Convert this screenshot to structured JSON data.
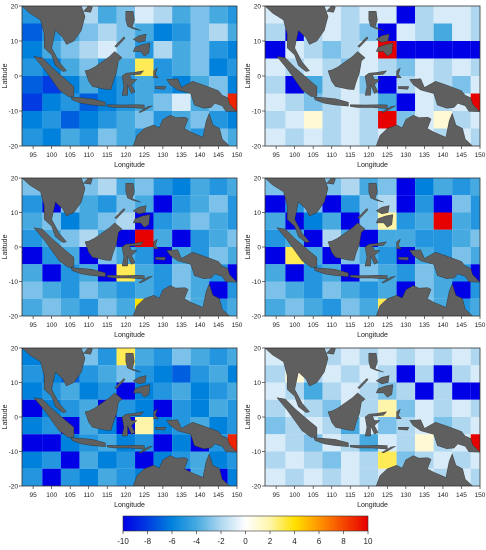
{
  "axes": {
    "xlabel": "Longitude",
    "ylabel": "Latitude",
    "x_ticks": [
      "95",
      "100",
      "105",
      "110",
      "115",
      "120",
      "125",
      "130",
      "135",
      "140",
      "145",
      "150"
    ],
    "y_ticks": [
      "20",
      "10",
      "0",
      "-10",
      "-20"
    ]
  },
  "extent": {
    "lon": [
      92,
      150
    ],
    "lat": [
      -20,
      20
    ],
    "cell_deg": 5
  },
  "colorbar": {
    "ticks": [
      "-10",
      "-8",
      "-6",
      "-4",
      "-2",
      "0",
      "2",
      "4",
      "6",
      "8",
      "10"
    ],
    "range": [
      -10,
      10
    ]
  },
  "colors": {
    "land": "#5f5f5f",
    "ocean_bg": "#eef3f8",
    "frame": "#333333"
  },
  "panels": [
    {
      "id": "top-left",
      "grid": [
        [
          -5,
          -4,
          -3,
          -2,
          -4,
          -3,
          -1,
          -2,
          -4,
          -3,
          -4,
          -5
        ],
        [
          -7,
          -5,
          -4,
          -3,
          -2,
          -3,
          -4,
          -6,
          -5,
          -3,
          -2,
          -4
        ],
        [
          -6,
          -4,
          -3,
          -2,
          -1,
          -3,
          -5,
          -2,
          -4,
          -3,
          -5,
          -6
        ],
        [
          -5,
          -6,
          -4,
          -3,
          -5,
          -4,
          3,
          -5,
          -4,
          -3,
          -6,
          -5
        ],
        [
          -7,
          -8,
          -6,
          -4,
          -6,
          -5,
          -4,
          -5,
          -6,
          -4,
          -3,
          -6
        ],
        [
          -8,
          -6,
          -5,
          -7,
          -6,
          -5,
          -4,
          -3,
          -1,
          -4,
          -3,
          9
        ],
        [
          -6,
          -5,
          -7,
          -6,
          -5,
          -4,
          -3,
          -5,
          -4,
          -3,
          -5,
          -6
        ],
        [
          -5,
          -6,
          -4,
          -5,
          -3,
          -4,
          -5,
          -3,
          -4,
          -5,
          -3,
          -4
        ]
      ]
    },
    {
      "id": "top-right",
      "grid": [
        [
          -1,
          -1,
          -2,
          -1,
          -2,
          -1,
          -1,
          -10,
          -2,
          -1,
          -1,
          -2
        ],
        [
          -2,
          -10,
          -2,
          -1,
          -2,
          -3,
          -10,
          -1,
          -2,
          -4,
          -1,
          -2
        ],
        [
          -10,
          -1,
          -2,
          -3,
          -2,
          -1,
          10,
          -10,
          -10,
          -10,
          -10,
          -10
        ],
        [
          -1,
          -2,
          -1,
          -2,
          -3,
          -1,
          -2,
          -3,
          -1,
          -2,
          -1,
          -2
        ],
        [
          -2,
          -10,
          -4,
          -2,
          -1,
          -3,
          -10,
          -2,
          -1,
          -2,
          -3,
          -1
        ],
        [
          -1,
          -2,
          -3,
          -2,
          -1,
          -2,
          -4,
          -10,
          -1,
          -2,
          -1,
          10
        ],
        [
          -2,
          -1,
          1,
          -2,
          -1,
          -2,
          10,
          -3,
          -1,
          1,
          -2,
          -1
        ],
        [
          -1,
          -2,
          -1,
          -2,
          -1,
          -2,
          -1,
          -2,
          -1,
          -2,
          -1,
          -2
        ]
      ]
    },
    {
      "id": "middle-left",
      "grid": [
        [
          -3,
          -4,
          -5,
          -3,
          -2,
          -4,
          -3,
          -5,
          -6,
          -4,
          -5,
          -4
        ],
        [
          -5,
          -10,
          -3,
          -4,
          -5,
          -3,
          -4,
          -10,
          -5,
          -4,
          -3,
          -5
        ],
        [
          -4,
          -3,
          -6,
          -4,
          -3,
          -2,
          -10,
          -5,
          -4,
          -3,
          -4,
          -5
        ],
        [
          -5,
          -4,
          -3,
          -2,
          -4,
          -10,
          10,
          -4,
          -10,
          -5,
          -4,
          -3
        ],
        [
          -10,
          -5,
          -4,
          -10,
          -3,
          -4,
          -5,
          -10,
          -4,
          -5,
          -3,
          -4
        ],
        [
          -4,
          -10,
          -5,
          -4,
          -10,
          3,
          -4,
          -5,
          -3,
          -4,
          -5,
          -10
        ],
        [
          -3,
          -4,
          -5,
          -3,
          -4,
          -5,
          -4,
          -5,
          -3,
          -4,
          -10,
          -5
        ],
        [
          -4,
          -3,
          -4,
          -5,
          -3,
          -4,
          4,
          -5,
          -3,
          -4,
          -5,
          -4
        ]
      ]
    },
    {
      "id": "middle-right",
      "grid": [
        [
          -3,
          -4,
          -5,
          -3,
          -2,
          -4,
          -3,
          -10,
          -6,
          -4,
          -5,
          -4
        ],
        [
          -10,
          -5,
          -3,
          -10,
          -5,
          -3,
          -2,
          -10,
          -5,
          -10,
          -3,
          -5
        ],
        [
          -4,
          -10,
          -6,
          -4,
          -10,
          -3,
          2,
          -5,
          -4,
          10,
          -4,
          -5
        ],
        [
          -5,
          -4,
          -10,
          -2,
          -4,
          -10,
          -4,
          -4,
          -5,
          -5,
          -4,
          -3
        ],
        [
          -10,
          3,
          -4,
          -10,
          -3,
          -4,
          -5,
          -10,
          -4,
          -5,
          -3,
          -4
        ],
        [
          -4,
          -10,
          -5,
          -4,
          -10,
          -3,
          -4,
          -5,
          -3,
          -4,
          -5,
          -10
        ],
        [
          -3,
          -4,
          -5,
          -3,
          -4,
          -5,
          -4,
          -10,
          -3,
          -4,
          -10,
          -5
        ],
        [
          -4,
          -3,
          -4,
          -5,
          -3,
          -4,
          3,
          -5,
          -3,
          -4,
          -5,
          -4
        ]
      ]
    },
    {
      "id": "bottom-left",
      "grid": [
        [
          -6,
          -4,
          -5,
          -3,
          -5,
          3,
          -4,
          -5,
          -3,
          -4,
          -5,
          -4
        ],
        [
          -5,
          -6,
          -7,
          -5,
          -4,
          -3,
          -5,
          -6,
          -7,
          -5,
          -4,
          -6
        ],
        [
          -6,
          -5,
          -4,
          -6,
          -5,
          -10,
          -6,
          -5,
          -4,
          -6,
          -5,
          -4
        ],
        [
          -10,
          -6,
          -5,
          -4,
          -10,
          -5,
          -6,
          -10,
          -5,
          -6,
          -4,
          -5
        ],
        [
          -6,
          -5,
          -10,
          -4,
          -6,
          -10,
          2,
          -6,
          -5,
          -4,
          -6,
          -5
        ],
        [
          -10,
          -10,
          -6,
          -5,
          -4,
          -6,
          -5,
          -10,
          -6,
          -10,
          -5,
          9
        ],
        [
          -6,
          -5,
          -10,
          -4,
          -6,
          -5,
          -10,
          -6,
          -5,
          -4,
          -6,
          -5
        ],
        [
          -5,
          -10,
          -5,
          -6,
          -4,
          -5,
          -6,
          -5,
          -10,
          -4,
          -10,
          -6
        ]
      ]
    },
    {
      "id": "bottom-right",
      "grid": [
        [
          -1,
          -2,
          -1,
          -2,
          -1,
          -2,
          -1,
          -2,
          -1,
          -2,
          -1,
          -2
        ],
        [
          -2,
          1,
          -2,
          -1,
          -2,
          -1,
          -2,
          -10,
          -2,
          -10,
          -2,
          -1
        ],
        [
          -1,
          -2,
          -4,
          -2,
          -1,
          -2,
          -3,
          -2,
          -10,
          -2,
          -10,
          -10
        ],
        [
          -2,
          -1,
          -2,
          -3,
          -1,
          -2,
          2,
          -3,
          -1,
          -2,
          -1,
          -2
        ],
        [
          -3,
          -2,
          -1,
          -2,
          -4,
          -1,
          -3,
          -2,
          -1,
          -3,
          -2,
          -1
        ],
        [
          -1,
          -2,
          -3,
          -1,
          -2,
          -4,
          -1,
          -2,
          1,
          -2,
          -1,
          10
        ],
        [
          -2,
          -1,
          -2,
          -3,
          -1,
          -2,
          3,
          -3,
          -2,
          -1,
          -2,
          -1
        ],
        [
          -1,
          -2,
          -1,
          -2,
          -1,
          -2,
          -1,
          -2,
          -1,
          -2,
          -1,
          -2
        ]
      ]
    }
  ]
}
